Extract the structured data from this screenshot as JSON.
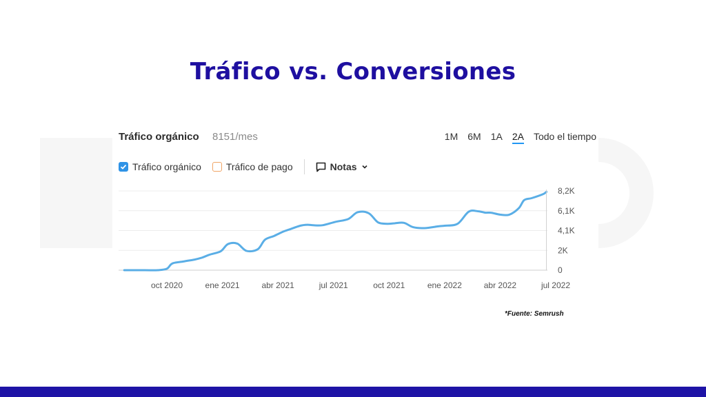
{
  "slide": {
    "title": "Tráfico vs. Conversiones",
    "source": "*Fuente: Semrush"
  },
  "card": {
    "title": "Tráfico orgánico",
    "metric": "8151/mes",
    "ranges": [
      "1M",
      "6M",
      "1A",
      "2A",
      "Todo el tiempo"
    ],
    "active_range": "2A",
    "legend": {
      "organic": "Tráfico orgánico",
      "paid": "Tráfico de pago",
      "notes": "Notas"
    }
  },
  "colors": {
    "title": "#1e0fa0",
    "line": "#5aaee6",
    "bar": "#1e13a6"
  },
  "chart_data": {
    "type": "line",
    "x_ticks": [
      "oct 2020",
      "ene 2021",
      "abr 2021",
      "jul 2021",
      "oct 2021",
      "ene 2022",
      "abr 2022",
      "jul 2022"
    ],
    "y_ticks": [
      "0",
      "2K",
      "4,1K",
      "6,1K",
      "8,2K"
    ],
    "ylim": [
      0,
      8200
    ],
    "grid": true,
    "series": [
      {
        "name": "Tráfico orgánico",
        "x": [
          -2.3,
          -1.2,
          -0.5,
          0,
          0.3,
          0.9,
          1.5,
          1.9,
          2.3,
          2.9,
          3.3,
          3.8,
          4.3,
          4.9,
          5.3,
          5.8,
          6.3,
          6.6,
          7.2,
          7.6,
          7.9,
          8.4,
          9.1,
          9.8,
          10.3,
          10.9,
          11.4,
          11.9,
          12.3,
          12.8,
          13.3,
          13.9,
          14.7,
          15.0,
          15.7,
          16.3,
          16.8,
          17.2,
          17.5,
          18.0,
          18.5,
          19.0,
          19.3,
          19.7,
          20.3,
          20.5
        ],
        "y": [
          0,
          0,
          0,
          150,
          700,
          900,
          1100,
          1300,
          1600,
          1950,
          2700,
          2750,
          2000,
          2150,
          3150,
          3550,
          4000,
          4200,
          4600,
          4700,
          4650,
          4650,
          5000,
          5300,
          6000,
          5900,
          4950,
          4800,
          4850,
          4900,
          4450,
          4350,
          4550,
          4600,
          4800,
          6050,
          6100,
          5950,
          5950,
          5750,
          5750,
          6400,
          7250,
          7450,
          7850,
          8100
        ]
      }
    ]
  }
}
